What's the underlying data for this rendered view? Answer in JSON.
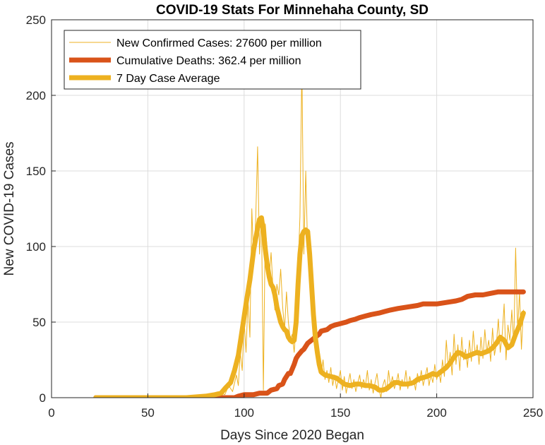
{
  "chart_data": {
    "type": "line",
    "title": "COVID-19 Stats For Minnehaha County, SD",
    "xlabel": "Days Since 2020 Began",
    "ylabel": "New COVID-19 Cases",
    "xlim": [
      0,
      250
    ],
    "ylim": [
      0,
      250
    ],
    "xticks": [
      0,
      50,
      100,
      150,
      200,
      250
    ],
    "yticks": [
      0,
      50,
      100,
      150,
      200,
      250
    ],
    "xtick_labels": [
      "0",
      "50",
      "100",
      "150",
      "200",
      "250"
    ],
    "ytick_labels": [
      "0",
      "50",
      "100",
      "150",
      "200",
      "250"
    ],
    "grid": true,
    "legend_position": "top-left",
    "series": [
      {
        "name": "New Confirmed Cases: 27600 per million",
        "color": "#EDB120",
        "style": "thin",
        "points": [
          [
            23,
            0
          ],
          [
            60,
            0
          ],
          [
            70,
            0
          ],
          [
            75,
            1
          ],
          [
            80,
            0
          ],
          [
            83,
            2
          ],
          [
            85,
            1
          ],
          [
            88,
            3
          ],
          [
            90,
            2
          ],
          [
            92,
            8
          ],
          [
            94,
            4
          ],
          [
            96,
            15
          ],
          [
            97,
            8
          ],
          [
            98,
            30
          ],
          [
            99,
            18
          ],
          [
            100,
            52
          ],
          [
            101,
            30
          ],
          [
            102,
            65
          ],
          [
            103,
            40
          ],
          [
            104,
            125
          ],
          [
            105,
            90
          ],
          [
            106,
            118
          ],
          [
            107,
            166
          ],
          [
            108,
            95
          ],
          [
            109,
            120
          ],
          [
            110,
            5
          ],
          [
            111,
            115
          ],
          [
            112,
            98
          ],
          [
            113,
            80
          ],
          [
            114,
            96
          ],
          [
            115,
            72
          ],
          [
            116,
            58
          ],
          [
            117,
            75
          ],
          [
            118,
            68
          ],
          [
            119,
            85
          ],
          [
            120,
            60
          ],
          [
            121,
            45
          ],
          [
            122,
            70
          ],
          [
            123,
            50
          ],
          [
            124,
            38
          ],
          [
            125,
            42
          ],
          [
            126,
            30
          ],
          [
            127,
            48
          ],
          [
            128,
            85
          ],
          [
            129,
            120
          ],
          [
            130,
            220
          ],
          [
            131,
            95
          ],
          [
            132,
            150
          ],
          [
            133,
            98
          ],
          [
            134,
            110
          ],
          [
            135,
            70
          ],
          [
            136,
            45
          ],
          [
            137,
            30
          ],
          [
            138,
            25
          ],
          [
            139,
            20
          ],
          [
            140,
            15
          ],
          [
            141,
            25
          ],
          [
            142,
            12
          ],
          [
            143,
            18
          ],
          [
            144,
            10
          ],
          [
            145,
            20
          ],
          [
            146,
            8
          ],
          [
            147,
            15
          ],
          [
            148,
            6
          ],
          [
            149,
            12
          ],
          [
            150,
            18
          ],
          [
            151,
            5
          ],
          [
            152,
            14
          ],
          [
            153,
            3
          ],
          [
            154,
            10
          ],
          [
            155,
            16
          ],
          [
            156,
            6
          ],
          [
            157,
            12
          ],
          [
            158,
            4
          ],
          [
            159,
            10
          ],
          [
            160,
            15
          ],
          [
            161,
            6
          ],
          [
            162,
            12
          ],
          [
            163,
            8
          ],
          [
            164,
            18
          ],
          [
            165,
            5
          ],
          [
            166,
            12
          ],
          [
            167,
            3
          ],
          [
            168,
            10
          ],
          [
            169,
            16
          ],
          [
            170,
            6
          ],
          [
            171,
            0
          ],
          [
            172,
            8
          ],
          [
            173,
            12
          ],
          [
            174,
            4
          ],
          [
            175,
            18
          ],
          [
            176,
            8
          ],
          [
            177,
            14
          ],
          [
            178,
            6
          ],
          [
            179,
            10
          ],
          [
            180,
            16
          ],
          [
            181,
            5
          ],
          [
            182,
            12
          ],
          [
            183,
            8
          ],
          [
            184,
            18
          ],
          [
            185,
            6
          ],
          [
            186,
            14
          ],
          [
            187,
            8
          ],
          [
            188,
            12
          ],
          [
            189,
            5
          ],
          [
            190,
            16
          ],
          [
            191,
            10
          ],
          [
            192,
            18
          ],
          [
            193,
            8
          ],
          [
            194,
            14
          ],
          [
            195,
            20
          ],
          [
            196,
            8
          ],
          [
            197,
            15
          ],
          [
            198,
            10
          ],
          [
            199,
            22
          ],
          [
            200,
            12
          ],
          [
            201,
            18
          ],
          [
            202,
            10
          ],
          [
            203,
            25
          ],
          [
            204,
            14
          ],
          [
            205,
            38
          ],
          [
            206,
            20
          ],
          [
            207,
            30
          ],
          [
            208,
            15
          ],
          [
            209,
            42
          ],
          [
            210,
            22
          ],
          [
            211,
            35
          ],
          [
            212,
            18
          ],
          [
            213,
            40
          ],
          [
            214,
            25
          ],
          [
            215,
            32
          ],
          [
            216,
            20
          ],
          [
            217,
            38
          ],
          [
            218,
            24
          ],
          [
            219,
            44
          ],
          [
            220,
            28
          ],
          [
            221,
            35
          ],
          [
            222,
            22
          ],
          [
            223,
            40
          ],
          [
            224,
            26
          ],
          [
            225,
            45
          ],
          [
            226,
            30
          ],
          [
            227,
            38
          ],
          [
            228,
            24
          ],
          [
            229,
            46
          ],
          [
            230,
            28
          ],
          [
            231,
            36
          ],
          [
            232,
            52
          ],
          [
            233,
            30
          ],
          [
            234,
            42
          ],
          [
            235,
            62
          ],
          [
            236,
            25
          ],
          [
            237,
            48
          ],
          [
            238,
            38
          ],
          [
            239,
            58
          ],
          [
            240,
            35
          ],
          [
            241,
            99
          ],
          [
            242,
            45
          ],
          [
            243,
            70
          ],
          [
            244,
            32
          ],
          [
            245,
            58
          ]
        ]
      },
      {
        "name": "Cumulative Deaths: 362.4 per million",
        "color": "#D95319",
        "style": "thick",
        "points": [
          [
            23,
            0
          ],
          [
            80,
            0
          ],
          [
            85,
            0
          ],
          [
            90,
            0
          ],
          [
            95,
            0
          ],
          [
            97,
            1
          ],
          [
            100,
            2
          ],
          [
            105,
            2
          ],
          [
            108,
            3
          ],
          [
            112,
            3
          ],
          [
            114,
            5
          ],
          [
            117,
            6
          ],
          [
            118,
            8
          ],
          [
            120,
            9
          ],
          [
            121,
            12
          ],
          [
            123,
            16
          ],
          [
            124,
            16
          ],
          [
            126,
            22
          ],
          [
            127,
            26
          ],
          [
            128,
            28
          ],
          [
            130,
            31
          ],
          [
            131,
            32
          ],
          [
            133,
            36
          ],
          [
            134,
            37
          ],
          [
            137,
            40
          ],
          [
            139,
            42
          ],
          [
            140,
            44
          ],
          [
            143,
            45
          ],
          [
            145,
            47
          ],
          [
            147,
            48
          ],
          [
            150,
            49
          ],
          [
            153,
            50
          ],
          [
            155,
            51
          ],
          [
            158,
            52
          ],
          [
            160,
            53
          ],
          [
            163,
            54
          ],
          [
            166,
            55
          ],
          [
            170,
            56
          ],
          [
            173,
            57
          ],
          [
            176,
            58
          ],
          [
            180,
            59
          ],
          [
            185,
            60
          ],
          [
            190,
            61
          ],
          [
            193,
            62
          ],
          [
            200,
            62
          ],
          [
            205,
            63
          ],
          [
            210,
            64
          ],
          [
            213,
            65
          ],
          [
            216,
            67
          ],
          [
            220,
            68
          ],
          [
            224,
            68
          ],
          [
            228,
            69
          ],
          [
            232,
            70
          ],
          [
            240,
            70
          ],
          [
            245,
            70
          ]
        ]
      },
      {
        "name": "7 Day Case Average",
        "color": "#EDB120",
        "style": "thick",
        "points": [
          [
            23,
            0
          ],
          [
            50,
            0
          ],
          [
            70,
            0
          ],
          [
            80,
            1
          ],
          [
            85,
            2
          ],
          [
            88,
            3
          ],
          [
            90,
            6
          ],
          [
            93,
            10
          ],
          [
            95,
            18
          ],
          [
            97,
            28
          ],
          [
            99,
            45
          ],
          [
            101,
            62
          ],
          [
            103,
            78
          ],
          [
            105,
            98
          ],
          [
            107,
            112
          ],
          [
            108,
            118
          ],
          [
            109,
            119
          ],
          [
            110,
            110
          ],
          [
            111,
            98
          ],
          [
            112,
            88
          ],
          [
            113,
            80
          ],
          [
            114,
            75
          ],
          [
            115,
            73
          ],
          [
            116,
            68
          ],
          [
            117,
            60
          ],
          [
            118,
            55
          ],
          [
            119,
            50
          ],
          [
            120,
            47
          ],
          [
            121,
            45
          ],
          [
            122,
            44
          ],
          [
            123,
            40
          ],
          [
            124,
            38
          ],
          [
            125,
            37
          ],
          [
            126,
            38
          ],
          [
            127,
            50
          ],
          [
            128,
            75
          ],
          [
            129,
            95
          ],
          [
            130,
            107
          ],
          [
            131,
            110
          ],
          [
            132,
            111
          ],
          [
            133,
            110
          ],
          [
            134,
            95
          ],
          [
            135,
            75
          ],
          [
            136,
            55
          ],
          [
            137,
            40
          ],
          [
            138,
            30
          ],
          [
            139,
            22
          ],
          [
            140,
            17
          ],
          [
            142,
            15
          ],
          [
            145,
            14
          ],
          [
            148,
            13
          ],
          [
            150,
            11
          ],
          [
            152,
            9
          ],
          [
            155,
            8
          ],
          [
            158,
            9
          ],
          [
            160,
            9
          ],
          [
            163,
            8
          ],
          [
            165,
            8
          ],
          [
            168,
            7
          ],
          [
            170,
            5
          ],
          [
            172,
            5
          ],
          [
            174,
            6
          ],
          [
            176,
            8
          ],
          [
            178,
            10
          ],
          [
            180,
            10
          ],
          [
            182,
            9
          ],
          [
            185,
            9
          ],
          [
            188,
            10
          ],
          [
            190,
            12
          ],
          [
            192,
            13
          ],
          [
            195,
            14
          ],
          [
            198,
            16
          ],
          [
            200,
            15
          ],
          [
            202,
            17
          ],
          [
            205,
            20
          ],
          [
            207,
            23
          ],
          [
            209,
            27
          ],
          [
            211,
            30
          ],
          [
            213,
            29
          ],
          [
            215,
            27
          ],
          [
            217,
            28
          ],
          [
            219,
            29
          ],
          [
            221,
            30
          ],
          [
            223,
            29
          ],
          [
            225,
            30
          ],
          [
            227,
            31
          ],
          [
            229,
            33
          ],
          [
            231,
            36
          ],
          [
            233,
            40
          ],
          [
            235,
            38
          ],
          [
            237,
            33
          ],
          [
            239,
            35
          ],
          [
            241,
            42
          ],
          [
            243,
            48
          ],
          [
            245,
            56
          ]
        ]
      }
    ]
  }
}
